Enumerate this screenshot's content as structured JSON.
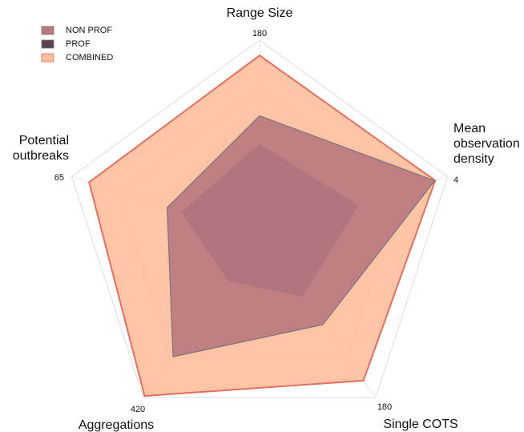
{
  "chart_data": {
    "type": "radar",
    "categories": [
      "Range Size",
      "Mean observation density",
      "Single COTS",
      "Aggregations",
      "Potential outbreaks"
    ],
    "axis_max": [
      180,
      4,
      180,
      420,
      65
    ],
    "series": [
      {
        "name": "NON PROF",
        "color": "#b87880",
        "values": [
          111,
          3.73,
          98,
          313,
          32
        ]
      },
      {
        "name": "PROF",
        "color": "#5a4452",
        "values": [
          85,
          2.1,
          66,
          113,
          27
        ]
      },
      {
        "name": "COMBINED",
        "color": "#ffbe9c",
        "values": [
          166,
          3.74,
          161,
          416,
          59
        ]
      }
    ],
    "grid": true,
    "legend": "upper left"
  }
}
